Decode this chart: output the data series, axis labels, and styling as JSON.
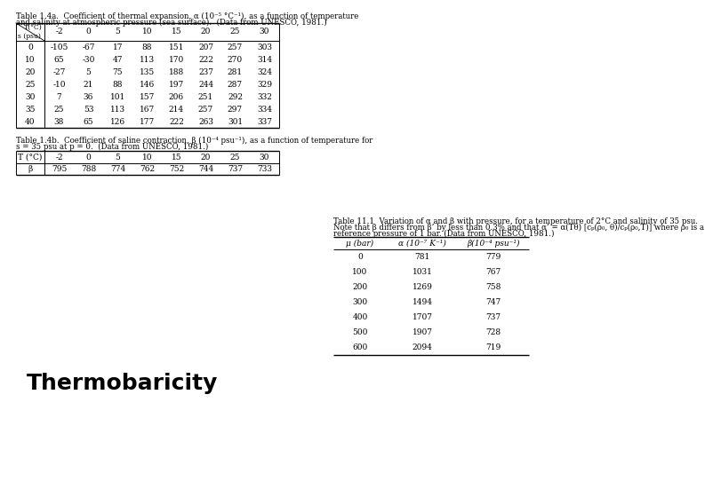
{
  "background": "#ffffff",
  "title_text": "Thermobaricity",
  "title_fontsize": 18,
  "table1a_caption_line1": "Table 1.4a.  Coefficient of thermal expansion, α (10⁻⁵ °C⁻¹), as a function of temperature",
  "table1a_caption_line2": "and salinity at atmospheric pressure (sea surface).  (Data from UNESCO, 1981.)",
  "table1a_temp_headers": [
    "-2",
    "0",
    "5",
    "10",
    "15",
    "20",
    "25",
    "30"
  ],
  "table1a_sal_rows": [
    "0",
    "10",
    "20",
    "25",
    "30",
    "35",
    "40"
  ],
  "table1a_data": [
    [
      "-105",
      "-67",
      "17",
      "88",
      "151",
      "207",
      "257",
      "303"
    ],
    [
      "65",
      "-30",
      "47",
      "113",
      "170",
      "222",
      "270",
      "314"
    ],
    [
      "-27",
      "5",
      "75",
      "135",
      "188",
      "237",
      "281",
      "324"
    ],
    [
      "-10",
      "21",
      "88",
      "146",
      "197",
      "244",
      "287",
      "329"
    ],
    [
      "7",
      "36",
      "101",
      "157",
      "206",
      "251",
      "292",
      "332"
    ],
    [
      "25",
      "53",
      "113",
      "167",
      "214",
      "257",
      "297",
      "334"
    ],
    [
      "38",
      "65",
      "126",
      "177",
      "222",
      "263",
      "301",
      "337"
    ]
  ],
  "table1b_caption_line1": "Table 1.4b.  Coefficient of saline contraction, β (10⁻⁴ psu⁻¹), as a function of temperature for",
  "table1b_caption_line2": "s = 35 psu at p = 0.  (Data from UNESCO, 1981.)",
  "table1b_temp_headers": [
    "-2",
    "0",
    "5",
    "10",
    "15",
    "20",
    "25",
    "30"
  ],
  "table1b_beta_row": [
    "795",
    "788",
    "774",
    "762",
    "752",
    "744",
    "737",
    "733"
  ],
  "table11_caption_line1": "Table 11.1  Variation of α and β with pressure, for a temperature of 2°C and salinity of 35 psu.",
  "table11_caption_line2": "Note that β differs from β’ by less than 0.3% and that α’ = α(Tθ) [cₚ(ρ₀, θ)/cₚ(ρ₀,T)] where ρ₀ is a",
  "table11_caption_line3": "reference pressure of 1 bar. (Data from UNESCO, 1981.)",
  "table11_col1_header": "μ (bar)",
  "table11_col2_header": "α (10⁻⁷ K⁻¹)",
  "table11_col3_header": "β(10⁻⁴ psu⁻¹)",
  "table11_data": [
    [
      "0",
      "781",
      "779"
    ],
    [
      "100",
      "1031",
      "767"
    ],
    [
      "200",
      "1269",
      "758"
    ],
    [
      "300",
      "1494",
      "747"
    ],
    [
      "400",
      "1707",
      "737"
    ],
    [
      "500",
      "1907",
      "728"
    ],
    [
      "600",
      "2094",
      "719"
    ]
  ]
}
